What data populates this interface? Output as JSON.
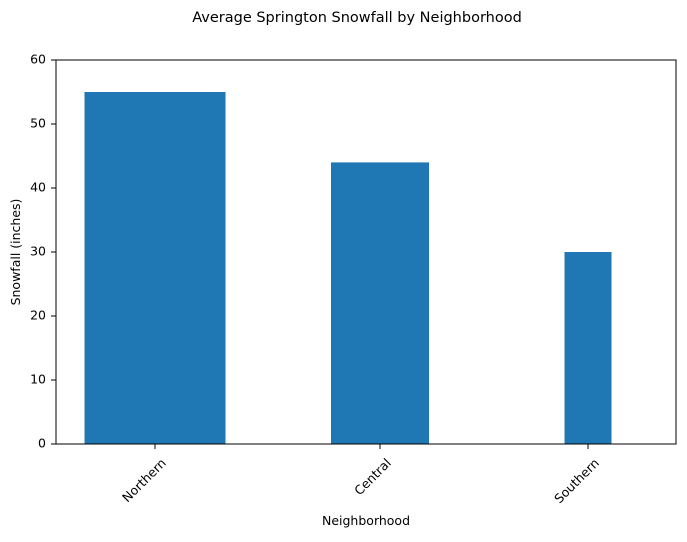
{
  "chart_data": {
    "type": "bar",
    "title": "Average Springton Snowfall by Neighborhood",
    "xlabel": "Neighborhood",
    "ylabel": "Snowfall (inches)",
    "categories": [
      "Northern",
      "Central",
      "Southern"
    ],
    "values": [
      55,
      44,
      30
    ],
    "ylim": [
      0,
      60
    ],
    "yticks": [
      0,
      10,
      20,
      30,
      40,
      50,
      60
    ],
    "grid": false,
    "bar_color": "#1f77b4"
  }
}
